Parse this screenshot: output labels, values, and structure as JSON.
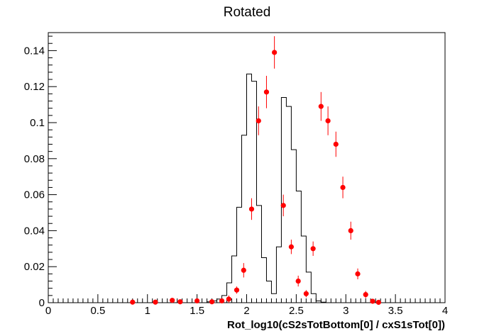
{
  "chart_data": {
    "type": "histogram",
    "title": "Rotated",
    "xlabel": "Rot_log10(cS2sTotBottom[0] / cxS1sTot[0])",
    "ylabel": "",
    "xlim": [
      0,
      4
    ],
    "ylim": [
      0,
      0.15
    ],
    "x_ticks": [
      0,
      0.5,
      1,
      1.5,
      2,
      2.5,
      3,
      3.5,
      4
    ],
    "x_tick_labels": [
      "0",
      "0.5",
      "1",
      "1.5",
      "2",
      "2.5",
      "3",
      "3.5",
      "4"
    ],
    "y_ticks": [
      0,
      0.02,
      0.04,
      0.06,
      0.08,
      0.1,
      0.12,
      0.14
    ],
    "y_tick_labels": [
      "0",
      "0.02",
      "0.04",
      "0.06",
      "0.08",
      "0.1",
      "0.12",
      "0.14"
    ],
    "grid": false,
    "series": [
      {
        "style": "step",
        "color": "#000000",
        "edges": [
          1.6,
          1.65,
          1.7,
          1.75,
          1.8,
          1.85,
          1.9,
          1.95,
          2.0,
          2.05,
          2.1,
          2.15,
          2.2,
          2.25,
          2.3,
          2.35,
          2.4,
          2.45,
          2.5,
          2.55,
          2.6,
          2.65,
          2.7,
          2.75,
          2.8,
          2.85,
          2.9,
          2.95,
          3.0,
          3.05,
          3.1,
          3.15,
          3.2,
          3.25,
          3.3,
          3.35,
          3.4
        ],
        "values": [
          0.0005,
          0.001,
          0.002,
          0.004,
          0.011,
          0.026,
          0.053,
          0.093,
          0.127,
          0.123,
          0.054,
          0.025,
          0.012,
          0.005,
          0.031,
          0.114,
          0.109,
          0.085,
          0.062,
          0.037,
          0.017,
          0.005,
          0.001,
          0.0003,
          0.0,
          0.0,
          0.0,
          0.0,
          0.0,
          0.0,
          0.0,
          0.0,
          0.0,
          0.0,
          0.0,
          0.0
        ]
      },
      {
        "style": "points-with-errors",
        "color": "#ff0000",
        "x": [
          0.85,
          1.08,
          1.25,
          1.33,
          1.5,
          1.65,
          1.75,
          1.82,
          1.9,
          1.97,
          2.05,
          2.12,
          2.2,
          2.28,
          2.37,
          2.45,
          2.52,
          2.6,
          2.67,
          2.75,
          2.82,
          2.9,
          2.97,
          3.05,
          3.12,
          3.2,
          3.27,
          3.33
        ],
        "y": [
          0.0003,
          0.0003,
          0.0013,
          0.0005,
          0.001,
          0.0005,
          0.001,
          0.002,
          0.007,
          0.018,
          0.052,
          0.101,
          0.117,
          0.139,
          0.054,
          0.031,
          0.012,
          0.005,
          0.03,
          0.109,
          0.101,
          0.088,
          0.064,
          0.04,
          0.016,
          0.0045,
          0.0008,
          0.0002
        ],
        "yerr": [
          0.0005,
          0.0005,
          0.001,
          0.0005,
          0.001,
          0.0005,
          0.001,
          0.002,
          0.002,
          0.004,
          0.006,
          0.008,
          0.009,
          0.009,
          0.006,
          0.004,
          0.003,
          0.002,
          0.004,
          0.008,
          0.008,
          0.007,
          0.006,
          0.005,
          0.003,
          0.002,
          0.001,
          0.0005
        ],
        "xerr": 0.04
      }
    ]
  }
}
